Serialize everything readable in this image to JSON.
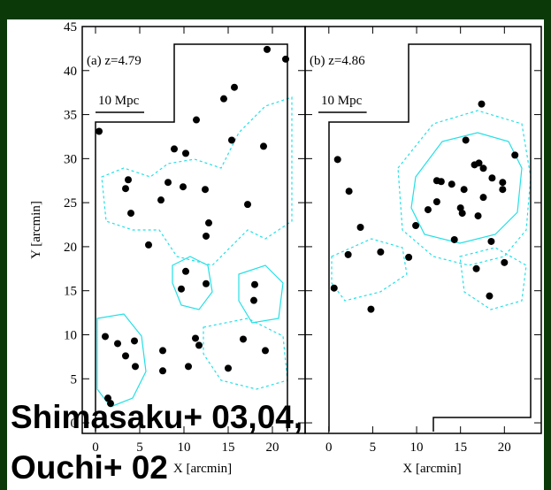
{
  "chart_data": [
    {
      "type": "scatter",
      "title": "(a) z=4.79",
      "scale_label": "10 Mpc",
      "x_label": "X [arcmin]",
      "y_label": "Y [arcmin]",
      "xlim": [
        -1.5,
        23.7
      ],
      "ylim": [
        -1.2,
        45
      ],
      "xticks": [
        0,
        5,
        10,
        15,
        20
      ],
      "yticks": [
        0,
        5,
        10,
        15,
        20,
        25,
        30,
        35,
        40,
        45
      ],
      "color": "#000000",
      "x": [
        0.4,
        3.7,
        3.4,
        4,
        6,
        7.4,
        8.2,
        8.9,
        10.2,
        9.9,
        11.4,
        12.4,
        12.8,
        12.5,
        14.5,
        15.7,
        15.4,
        19,
        19.4,
        21.5,
        17.2,
        10.2,
        9.7,
        12.5,
        1.1,
        2.5,
        3.4,
        4.4,
        4.5,
        7.6,
        7.6,
        10.5,
        11.3,
        11.7,
        15,
        16.7,
        18,
        17.9,
        19.2,
        1.4,
        1.7
      ],
      "values": [
        33.1,
        27.6,
        26.6,
        23.8,
        20.2,
        25.3,
        27.3,
        31.1,
        30.6,
        26.8,
        34.4,
        26.5,
        22.7,
        21.2,
        36.8,
        38.1,
        32.1,
        31.4,
        42.4,
        41.3,
        24.8,
        17.2,
        15.2,
        15.8,
        9.8,
        9,
        7.6,
        9.3,
        6.4,
        8.2,
        5.9,
        6.4,
        9.6,
        8.8,
        6.2,
        9.5,
        15.7,
        13.9,
        8.2,
        2.8,
        2.2
      ]
    },
    {
      "type": "scatter",
      "title": "(b) z=4.86",
      "scale_label": "10 Mpc",
      "x_label": "X [arcmin]",
      "xlim": [
        -2.7,
        24.2
      ],
      "ylim": [
        -1.2,
        45
      ],
      "xticks": [
        0,
        5,
        10,
        15,
        20
      ],
      "yticks": [
        0,
        5,
        10,
        15,
        20,
        25,
        30,
        35,
        40,
        45
      ],
      "color": "#000000",
      "x": [
        1,
        2.3,
        3.6,
        2.2,
        0.6,
        5.9,
        4.8,
        9.1,
        9.9,
        11.3,
        12.3,
        12.8,
        14,
        12.3,
        15.4,
        15,
        15.2,
        15.6,
        16.6,
        17.1,
        17.6,
        17.6,
        18.6,
        19.8,
        19.8,
        21.2,
        17.4,
        17,
        14.3,
        18.5,
        16.8,
        20,
        18.3
      ],
      "values": [
        29.9,
        26.3,
        22.2,
        19.1,
        15.3,
        19.4,
        12.9,
        18.8,
        22.4,
        24.2,
        27.5,
        27.4,
        27.1,
        25.1,
        26.5,
        24.4,
        23.8,
        32.1,
        29.3,
        29.5,
        28.9,
        25.6,
        27.8,
        27.3,
        26.5,
        30.4,
        36.2,
        23.5,
        20.8,
        20.6,
        17.5,
        18.2,
        14.4
      ]
    }
  ],
  "caption": [
    "Shimasaku+ 03,04,",
    "Ouchi+ 02"
  ]
}
